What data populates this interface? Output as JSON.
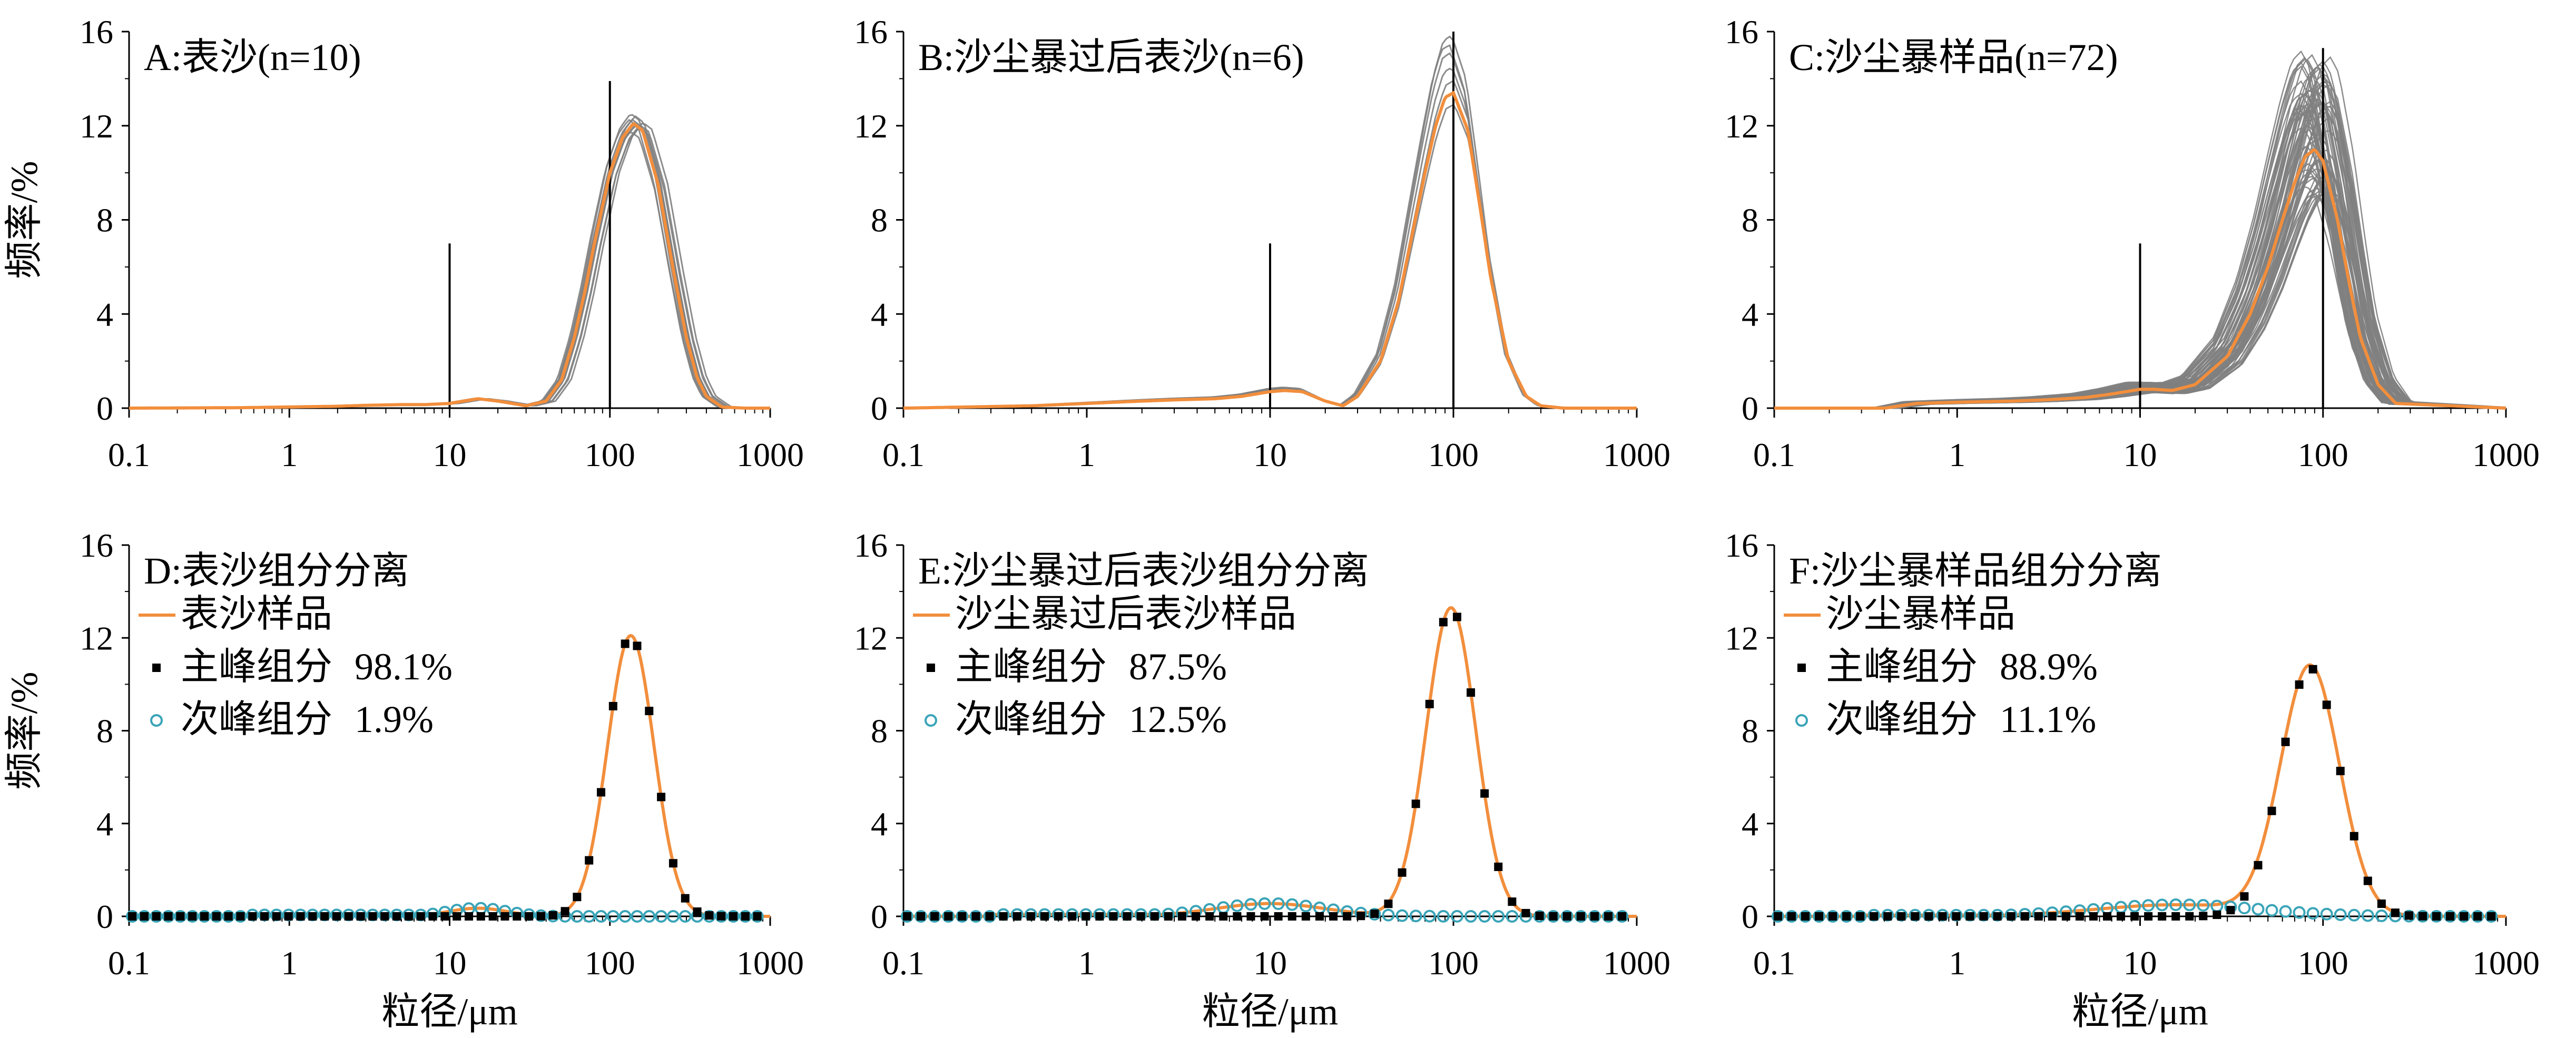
{
  "colors": {
    "sample": "#f28e3c",
    "individual": "#808080",
    "major": "#000000",
    "minor": "#3aa4b8",
    "axis": "#000000"
  },
  "chart_data": [
    {
      "id": "A",
      "type": "line",
      "title": "A:表沙(n=10)",
      "xlabel": "",
      "ylabel": "频率/%",
      "xscale": "log",
      "xlim": [
        0.1,
        1000
      ],
      "ylim": [
        0,
        16
      ],
      "yticks": [
        0,
        4,
        8,
        12,
        16
      ],
      "xticks": [
        0.1,
        1,
        10,
        100,
        1000
      ],
      "xtick_labels": [
        "0.1",
        "1",
        "10",
        "100",
        "1000"
      ],
      "grid": false,
      "vlines": [
        {
          "x": 10,
          "top": 7
        },
        {
          "x": 100,
          "top": 13.9
        }
      ],
      "individual_series": {
        "count": 10,
        "color": "gray",
        "peak_x_range": [
          125,
          165
        ],
        "peak_y_range": [
          11.7,
          12.7
        ]
      },
      "series": [
        {
          "x": [
            0.1,
            0.5,
            1,
            2,
            3,
            5,
            7,
            10,
            15,
            20,
            30,
            40,
            50,
            60,
            70,
            80,
            100,
            120,
            140,
            160,
            200,
            250,
            300,
            350,
            400,
            500,
            700,
            1000
          ],
          "y": [
            0,
            0.02,
            0.05,
            0.08,
            0.12,
            0.15,
            0.15,
            0.2,
            0.4,
            0.3,
            0.1,
            0.3,
            1.2,
            3.0,
            5.0,
            7.0,
            10.0,
            11.5,
            12.1,
            11.8,
            9.5,
            5.8,
            3.0,
            1.3,
            0.5,
            0.05,
            0,
            0
          ]
        }
      ]
    },
    {
      "id": "B",
      "type": "line",
      "title": "B:沙尘暴过后表沙(n=6)",
      "xlabel": "",
      "ylabel": "",
      "xscale": "log",
      "xlim": [
        0.1,
        1000
      ],
      "ylim": [
        0,
        16
      ],
      "yticks": [
        0,
        4,
        8,
        12,
        16
      ],
      "xticks": [
        0.1,
        1,
        10,
        100,
        1000
      ],
      "xtick_labels": [
        "0.1",
        "1",
        "10",
        "100",
        "1000"
      ],
      "grid": false,
      "vlines": [
        {
          "x": 10,
          "top": 7
        },
        {
          "x": 100,
          "top": 16
        }
      ],
      "individual_series": {
        "count": 6,
        "color": "gray",
        "peak_x_range": [
          95,
          105
        ],
        "peak_y_range": [
          12.8,
          15.9
        ]
      },
      "series": [
        {
          "x": [
            0.1,
            0.5,
            1,
            2,
            3,
            5,
            7,
            10,
            12,
            15,
            20,
            25,
            30,
            40,
            50,
            60,
            70,
            80,
            90,
            100,
            120,
            140,
            160,
            200,
            250,
            300,
            400,
            1000
          ],
          "y": [
            0,
            0.1,
            0.2,
            0.3,
            0.35,
            0.4,
            0.5,
            0.7,
            0.75,
            0.7,
            0.3,
            0.1,
            0.5,
            2.0,
            4.5,
            7.5,
            10.0,
            12.0,
            13.2,
            13.4,
            11.8,
            8.5,
            5.5,
            2.0,
            0.5,
            0.1,
            0,
            0
          ]
        }
      ]
    },
    {
      "id": "C",
      "type": "line",
      "title": "C:沙尘暴样品(n=72)",
      "xlabel": "",
      "ylabel": "",
      "xscale": "log",
      "xlim": [
        0.1,
        1000
      ],
      "ylim": [
        0,
        16
      ],
      "yticks": [
        0,
        4,
        8,
        12,
        16
      ],
      "xticks": [
        0.1,
        1,
        10,
        100,
        1000
      ],
      "xtick_labels": [
        "0.1",
        "1",
        "10",
        "100",
        "1000"
      ],
      "grid": false,
      "vlines": [
        {
          "x": 10,
          "top": 7
        },
        {
          "x": 100,
          "top": 15.3
        }
      ],
      "individual_series": {
        "count": 72,
        "color": "gray",
        "peak_x_range": [
          75,
          110
        ],
        "peak_y_range": [
          9,
          15.2
        ]
      },
      "series": [
        {
          "x": [
            0.1,
            0.4,
            0.6,
            1,
            2,
            3,
            5,
            7,
            10,
            12,
            15,
            20,
            30,
            40,
            50,
            60,
            70,
            80,
            90,
            100,
            120,
            140,
            160,
            200,
            250,
            1000
          ],
          "y": [
            0,
            0,
            0.2,
            0.25,
            0.3,
            0.35,
            0.45,
            0.6,
            0.8,
            0.8,
            0.75,
            1.0,
            2.2,
            4.0,
            6.0,
            8.0,
            9.6,
            10.7,
            11.0,
            10.5,
            8.0,
            5.2,
            3.0,
            1.0,
            0.2,
            0
          ]
        }
      ]
    },
    {
      "id": "D",
      "type": "line",
      "title": "D:表沙组分分离",
      "xlabel": "粒径/μm",
      "ylabel": "频率/%",
      "xscale": "log",
      "xlim": [
        0.1,
        1000
      ],
      "ylim": [
        0,
        16
      ],
      "yticks": [
        0,
        4,
        8,
        12,
        16
      ],
      "xticks": [
        0.1,
        1,
        10,
        100,
        1000
      ],
      "xtick_labels": [
        "0.1",
        "1",
        "10",
        "100",
        "1000"
      ],
      "grid": false,
      "legend": [
        {
          "kind": "line",
          "label": "表沙样品",
          "value": ""
        },
        {
          "kind": "square",
          "label": "主峰组分",
          "value": "98.1%"
        },
        {
          "kind": "circle",
          "label": "次峰组分",
          "value": "1.9%"
        }
      ],
      "components": {
        "major": {
          "mu": 135,
          "sigma_log10": 0.145,
          "amp": 12.1
        },
        "minor": {
          "mu": 15,
          "sigma_log10": 0.18,
          "amp": 0.35
        },
        "tail": {
          "start": 0.5,
          "end": 8,
          "level": 0.06
        }
      }
    },
    {
      "id": "E",
      "type": "line",
      "title": "E:沙尘暴过后表沙组分分离",
      "xlabel": "粒径/μm",
      "ylabel": "",
      "xscale": "log",
      "xlim": [
        0.1,
        1000
      ],
      "ylim": [
        0,
        16
      ],
      "yticks": [
        0,
        4,
        8,
        12,
        16
      ],
      "xticks": [
        0.1,
        1,
        10,
        100,
        1000
      ],
      "xtick_labels": [
        "0.1",
        "1",
        "10",
        "100",
        "1000"
      ],
      "grid": false,
      "legend": [
        {
          "kind": "line",
          "label": "沙尘暴过后表沙样品",
          "value": ""
        },
        {
          "kind": "square",
          "label": "主峰组分",
          "value": "87.5%"
        },
        {
          "kind": "circle",
          "label": "次峰组分",
          "value": "12.5%"
        }
      ],
      "components": {
        "major": {
          "mu": 97,
          "sigma_log10": 0.135,
          "amp": 13.3
        },
        "minor": {
          "mu": 10,
          "sigma_log10": 0.3,
          "amp": 0.55
        },
        "tail": {
          "start": 0.3,
          "end": 3,
          "level": 0.08
        }
      }
    },
    {
      "id": "F",
      "type": "line",
      "title": "F:沙尘暴样品组分分离",
      "xlabel": "粒径/μm",
      "ylabel": "",
      "xscale": "log",
      "xlim": [
        0.1,
        1000
      ],
      "ylim": [
        0,
        16
      ],
      "yticks": [
        0,
        4,
        8,
        12,
        16
      ],
      "xticks": [
        0.1,
        1,
        10,
        100,
        1000
      ],
      "xtick_labels": [
        "0.1",
        "1",
        "10",
        "100",
        "1000"
      ],
      "grid": false,
      "legend": [
        {
          "kind": "line",
          "label": "沙尘暴样品",
          "value": ""
        },
        {
          "kind": "square",
          "label": "主峰组分",
          "value": "88.9%"
        },
        {
          "kind": "circle",
          "label": "次峰组分",
          "value": "11.1%"
        }
      ],
      "components": {
        "major": {
          "mu": 85,
          "sigma_log10": 0.16,
          "amp": 10.7
        },
        "minor": {
          "mu": 16,
          "sigma_log10": 0.45,
          "amp": 0.5
        },
        "tail": {
          "start": 0.3,
          "end": 4,
          "level": 0.05
        }
      }
    }
  ]
}
